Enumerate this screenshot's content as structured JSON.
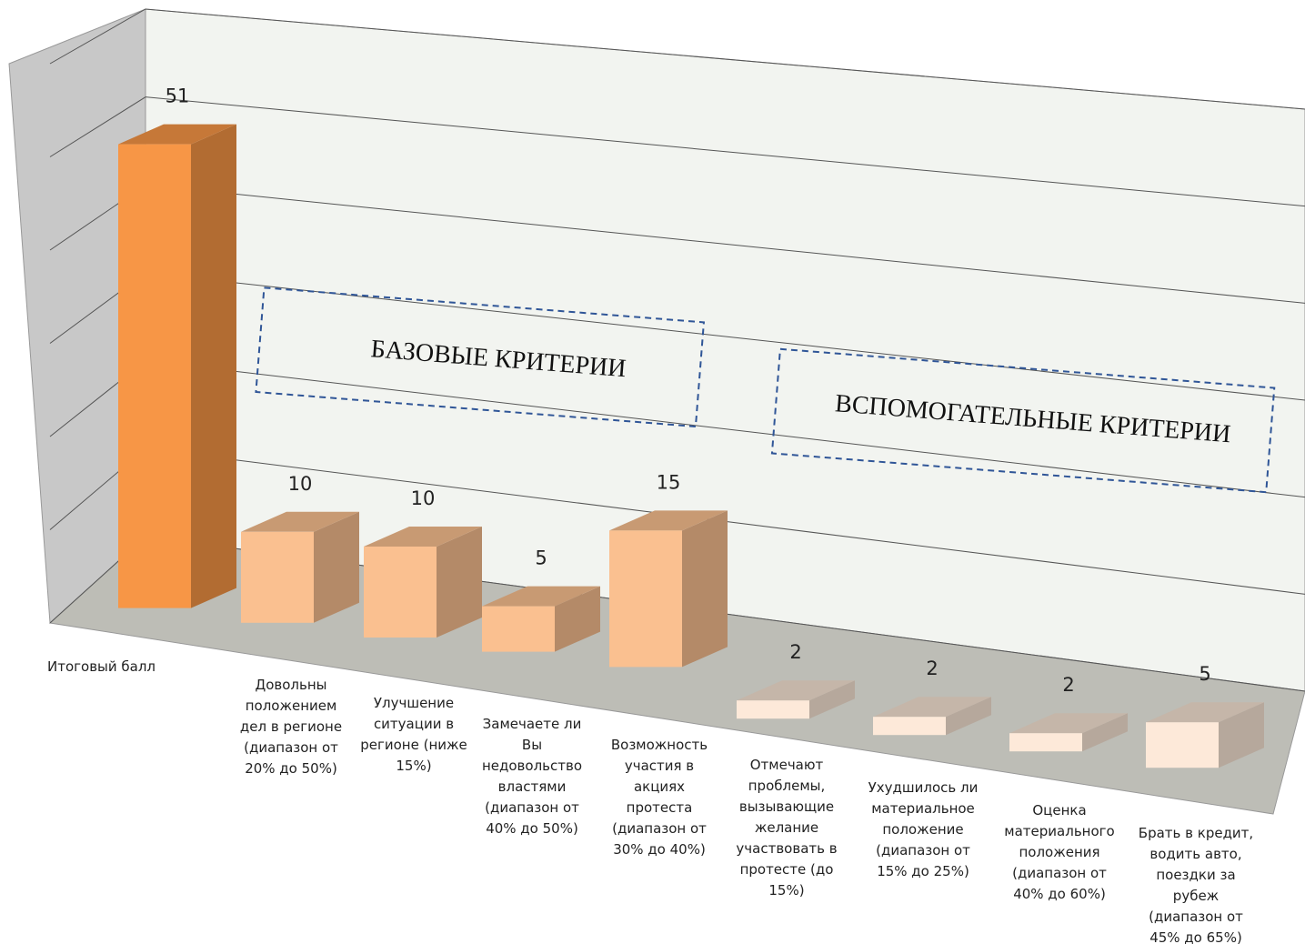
{
  "chart_data": {
    "type": "bar3d",
    "categories": [
      "Итоговый балл",
      "Довольны положением дел в регионе (диапазон от 20% до 50%)",
      "Улучшение ситуации в регионе (ниже 15%)",
      "Замечаете ли Вы недовольство властями (диапазон от 40% до 50%)",
      "Возможность участия в акциях протеста (диапазон от 30% до 40%)",
      "Отмечают проблемы, вызывающие желание участвовать в протесте (до 15%)",
      "Ухудшилось ли материальное положение (диапазон от 15% до 25%)",
      "Оценка материального положения (диапазон от 40% до 60%)",
      "Брать в кредит, водить авто, поездки за рубеж (диапазон от 45% до 65%)"
    ],
    "values": [
      51,
      10,
      10,
      5,
      15,
      2,
      2,
      2,
      5
    ],
    "colors": [
      "#f79646",
      "#fac090",
      "#fac090",
      "#fac090",
      "#fac090",
      "#fde9d9",
      "#fde9d9",
      "#fde9d9",
      "#fde9d9"
    ],
    "ylim": [
      0,
      60
    ],
    "yticks": [
      0,
      10,
      20,
      30,
      40,
      50,
      60
    ],
    "grid": true,
    "annotations": [
      "БАЗОВЫЕ КРИТЕРИИ",
      "ВСПОМОГАТЕЛЬНЫЕ КРИТЕРИИ"
    ]
  }
}
